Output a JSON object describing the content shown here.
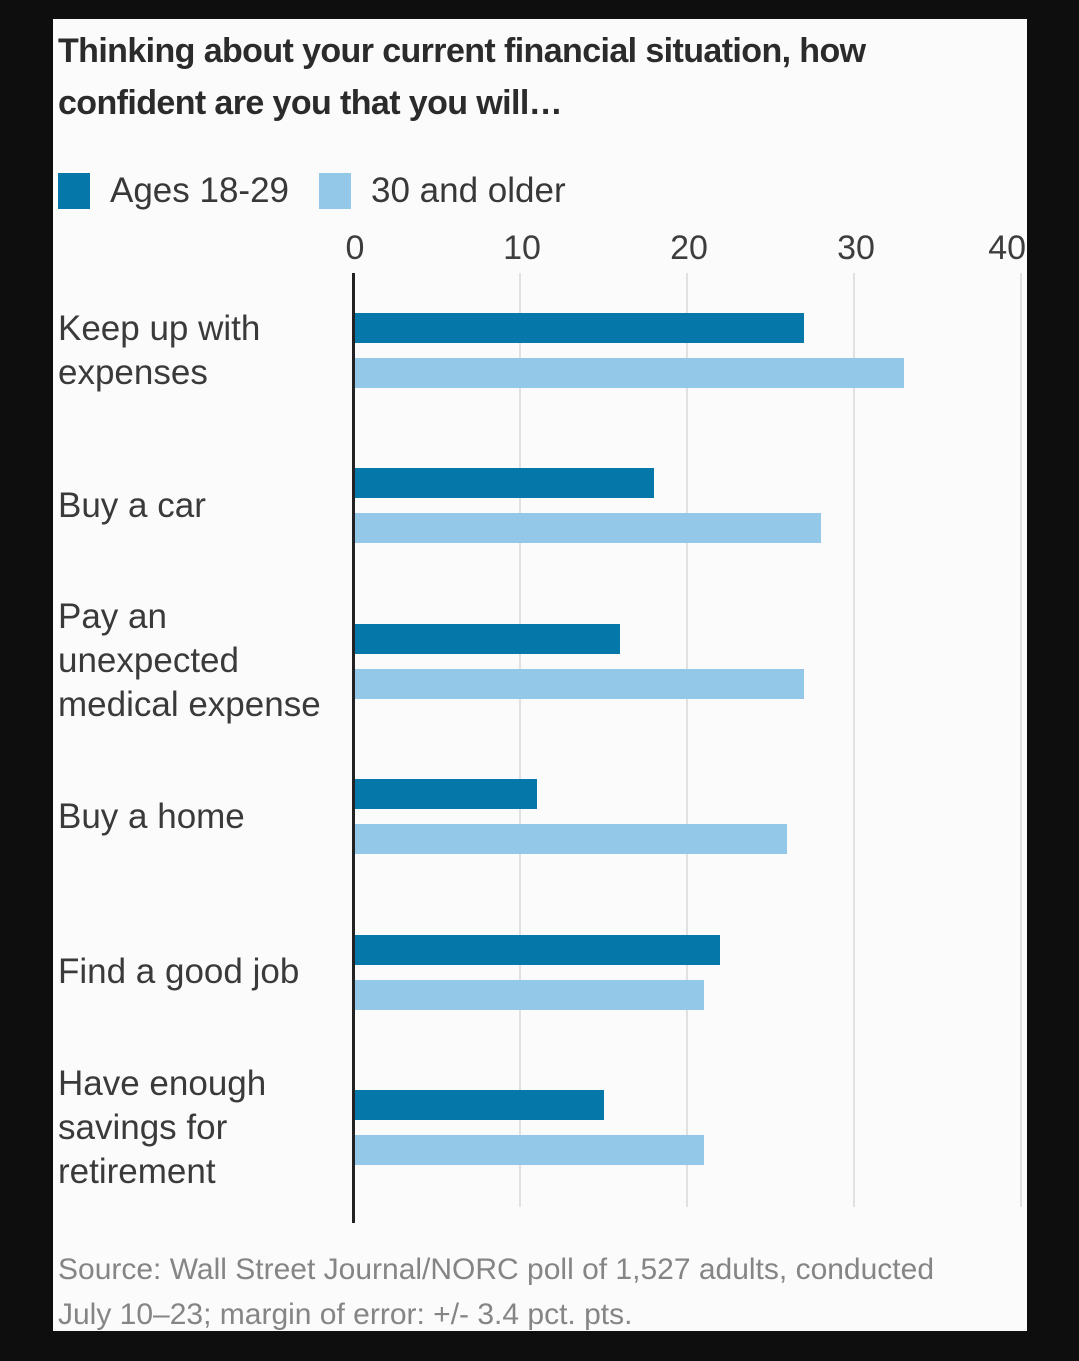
{
  "frame": {
    "background_color": "#0e0e0e",
    "card_background_color": "#fbfbfb"
  },
  "chart_data": {
    "type": "bar",
    "orientation": "horizontal",
    "title": "Thinking about your current financial situation, how\nconfident are you that you will…",
    "categories": [
      "Keep up with\nexpenses",
      "Buy a car",
      "Pay an\nunexpected\nmedical expense",
      "Buy a home",
      "Find a good job",
      "Have enough\nsavings for\nretirement"
    ],
    "series": [
      {
        "name": "Ages 18-29",
        "color": "#0577a9",
        "values": [
          27,
          18,
          16,
          11,
          22,
          15
        ]
      },
      {
        "name": "30 and older",
        "color": "#94c8e9",
        "values": [
          33,
          28,
          27,
          26,
          21,
          21
        ]
      }
    ],
    "xlim": [
      0,
      40
    ],
    "xticks": [
      0,
      10,
      20,
      30,
      40
    ],
    "grid": true,
    "legend_position": "top-left",
    "source": "Source: Wall Street Journal/NORC poll of 1,527 adults, conducted\nJuly 10–23; margin of error: +/- 3.4 pct. pts."
  }
}
